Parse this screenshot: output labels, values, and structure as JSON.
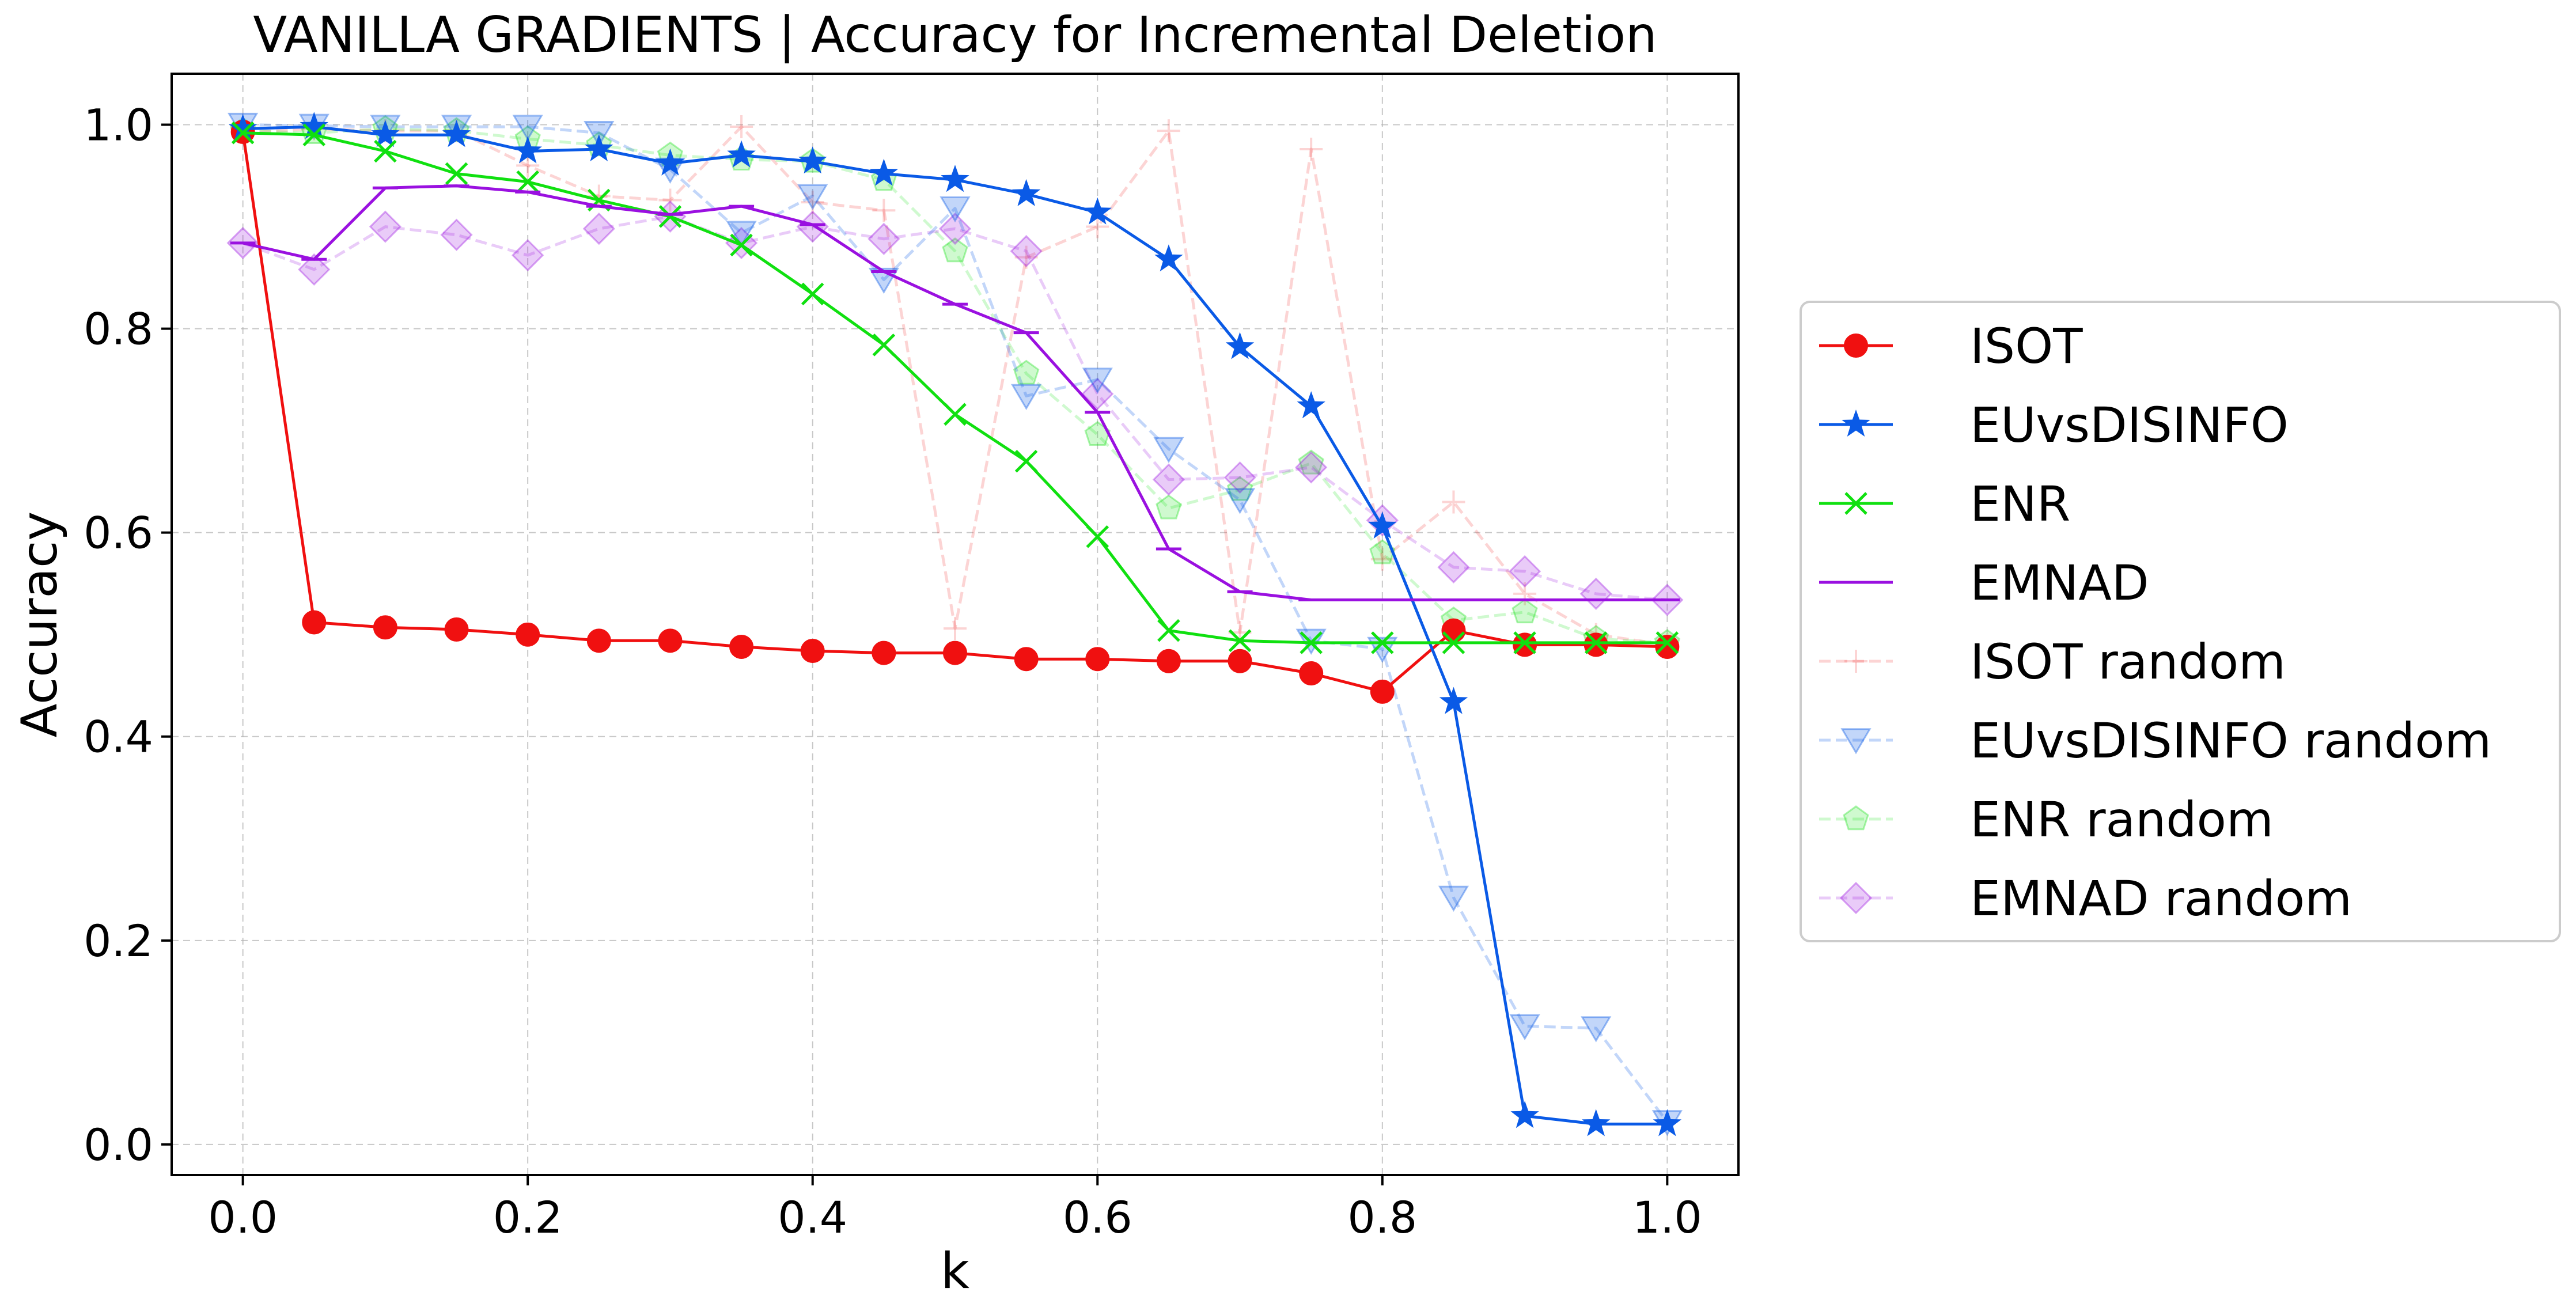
{
  "chart_data": {
    "type": "line",
    "title": "VANILLA GRADIENTS | Accuracy for Incremental Deletion",
    "xlabel": "k",
    "ylabel": "Accuracy",
    "xlim": [
      -0.05,
      1.05
    ],
    "ylim": [
      -0.03,
      1.05
    ],
    "xticks": [
      0.0,
      0.2,
      0.4,
      0.6,
      0.8,
      1.0
    ],
    "xtick_labels": [
      "0.0",
      "0.2",
      "0.4",
      "0.6",
      "0.8",
      "1.0"
    ],
    "yticks": [
      0.0,
      0.2,
      0.4,
      0.6,
      0.8,
      1.0
    ],
    "ytick_labels": [
      "0.0",
      "0.2",
      "0.4",
      "0.6",
      "0.8",
      "1.0"
    ],
    "grid": true,
    "legend_position": "right-outside",
    "x": [
      0.0,
      0.05,
      0.1,
      0.15,
      0.2,
      0.25,
      0.3,
      0.35,
      0.4,
      0.45,
      0.5,
      0.55,
      0.6,
      0.65,
      0.7,
      0.75,
      0.8,
      0.85,
      0.9,
      0.95,
      1.0
    ],
    "series": [
      {
        "name": "ISOT",
        "color": "#f01010",
        "marker": "circle",
        "linestyle": "solid",
        "alpha": 1.0,
        "values": [
          0.993,
          0.512,
          0.507,
          0.505,
          0.5,
          0.494,
          0.494,
          0.488,
          0.484,
          0.482,
          0.482,
          0.476,
          0.476,
          0.474,
          0.474,
          0.462,
          0.444,
          0.504,
          0.49,
          0.49,
          0.488
        ]
      },
      {
        "name": "EUvsDISINFO",
        "color": "#0a5ae6",
        "marker": "star",
        "linestyle": "solid",
        "alpha": 1.0,
        "values": [
          0.996,
          0.998,
          0.99,
          0.99,
          0.974,
          0.976,
          0.962,
          0.97,
          0.964,
          0.952,
          0.946,
          0.932,
          0.914,
          0.868,
          0.782,
          0.724,
          0.606,
          0.434,
          0.028,
          0.02,
          0.02
        ]
      },
      {
        "name": "ENR",
        "color": "#10e010",
        "marker": "x",
        "linestyle": "solid",
        "alpha": 1.0,
        "values": [
          0.992,
          0.99,
          0.974,
          0.952,
          0.944,
          0.926,
          0.91,
          0.882,
          0.834,
          0.784,
          0.716,
          0.67,
          0.596,
          0.504,
          0.494,
          0.492,
          0.492,
          0.492,
          0.492,
          0.492,
          0.492
        ]
      },
      {
        "name": "EMNAD",
        "color": "#9a10e0",
        "marker": "hline",
        "linestyle": "solid",
        "alpha": 1.0,
        "values": [
          0.884,
          0.868,
          0.938,
          0.94,
          0.934,
          0.92,
          0.912,
          0.92,
          0.902,
          0.856,
          0.824,
          0.796,
          0.718,
          0.584,
          0.542,
          0.534,
          0.534,
          0.534,
          0.534,
          0.534,
          0.534
        ]
      },
      {
        "name": "ISOT random",
        "color": "#f01010",
        "marker": "plus",
        "linestyle": "dashed",
        "alpha": 0.18,
        "values": [
          0.992,
          0.996,
          0.994,
          0.994,
          0.96,
          0.93,
          0.926,
          0.998,
          0.924,
          0.916,
          0.506,
          0.87,
          0.9,
          0.994,
          0.502,
          0.976,
          0.574,
          0.63,
          0.54,
          0.5,
          0.49
        ]
      },
      {
        "name": "EUvsDISINFO random",
        "color": "#0a5ae6",
        "marker": "triangle-down",
        "linestyle": "dashed",
        "alpha": 0.25,
        "values": [
          1.0,
          0.999,
          0.998,
          0.998,
          0.998,
          0.992,
          0.956,
          0.894,
          0.93,
          0.848,
          0.918,
          0.734,
          0.75,
          0.682,
          0.632,
          0.494,
          0.486,
          0.242,
          0.116,
          0.114,
          0.022
        ]
      },
      {
        "name": "ENR random",
        "color": "#10e010",
        "marker": "pentagon",
        "linestyle": "dashed",
        "alpha": 0.2,
        "values": [
          0.994,
          0.992,
          0.996,
          0.994,
          0.986,
          0.98,
          0.97,
          0.966,
          0.964,
          0.946,
          0.876,
          0.756,
          0.696,
          0.624,
          0.642,
          0.668,
          0.58,
          0.514,
          0.522,
          0.496,
          0.492
        ]
      },
      {
        "name": "EMNAD random",
        "color": "#9a10e0",
        "marker": "diamond",
        "linestyle": "dashed",
        "alpha": 0.22,
        "values": [
          0.884,
          0.858,
          0.9,
          0.892,
          0.872,
          0.898,
          0.91,
          0.884,
          0.9,
          0.888,
          0.898,
          0.876,
          0.736,
          0.652,
          0.654,
          0.664,
          0.612,
          0.566,
          0.562,
          0.54,
          0.534
        ]
      }
    ]
  }
}
